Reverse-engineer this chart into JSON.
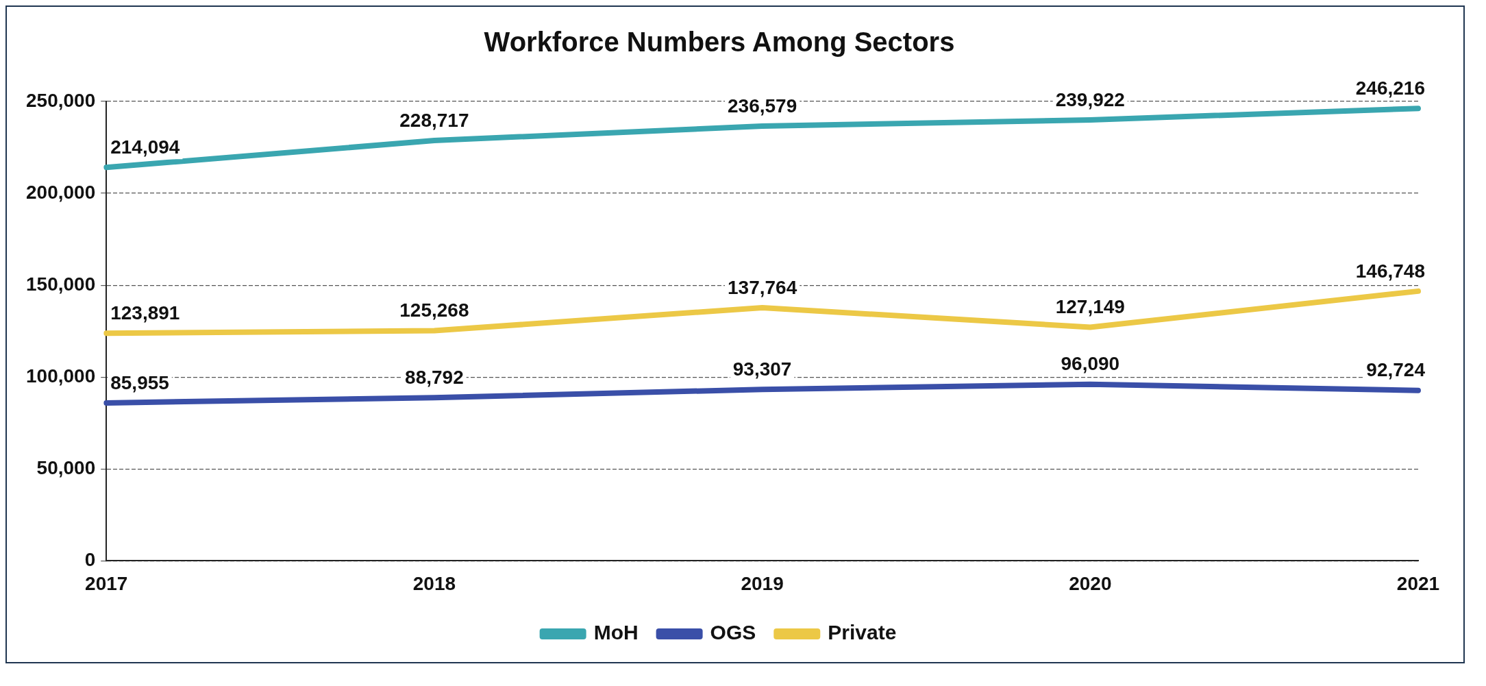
{
  "chart_data": {
    "type": "line",
    "title": "Workforce Numbers Among Sectors",
    "categories": [
      "2017",
      "2018",
      "2019",
      "2020",
      "2021"
    ],
    "series": [
      {
        "name": "MoH",
        "color": "#3aa6b0",
        "values": [
          214094,
          228717,
          236579,
          239922,
          246216
        ],
        "value_labels": [
          "214,094",
          "228,717",
          "236,579",
          "239,922",
          "246,216"
        ]
      },
      {
        "name": "OGS",
        "color": "#3a4fa8",
        "values": [
          85955,
          88792,
          93307,
          96090,
          92724
        ],
        "value_labels": [
          "85,955",
          "88,792",
          "93,307",
          "96,090",
          "92,724"
        ]
      },
      {
        "name": "Private",
        "color": "#ecc846",
        "values": [
          123891,
          125268,
          137764,
          127149,
          146748
        ],
        "value_labels": [
          "123,891",
          "125,268",
          "137,764",
          "127,149",
          "146,748"
        ]
      }
    ],
    "ylim": [
      0,
      250000
    ],
    "yticks": [
      {
        "value": 0,
        "label": "0"
      },
      {
        "value": 50000,
        "label": "50,000"
      },
      {
        "value": 100000,
        "label": "100,000"
      },
      {
        "value": 150000,
        "label": "150,000"
      },
      {
        "value": 200000,
        "label": "200,000"
      },
      {
        "value": 250000,
        "label": "250,000"
      }
    ],
    "grid": "y",
    "legend": "bottom",
    "marker": "none",
    "line_style": "solid"
  }
}
